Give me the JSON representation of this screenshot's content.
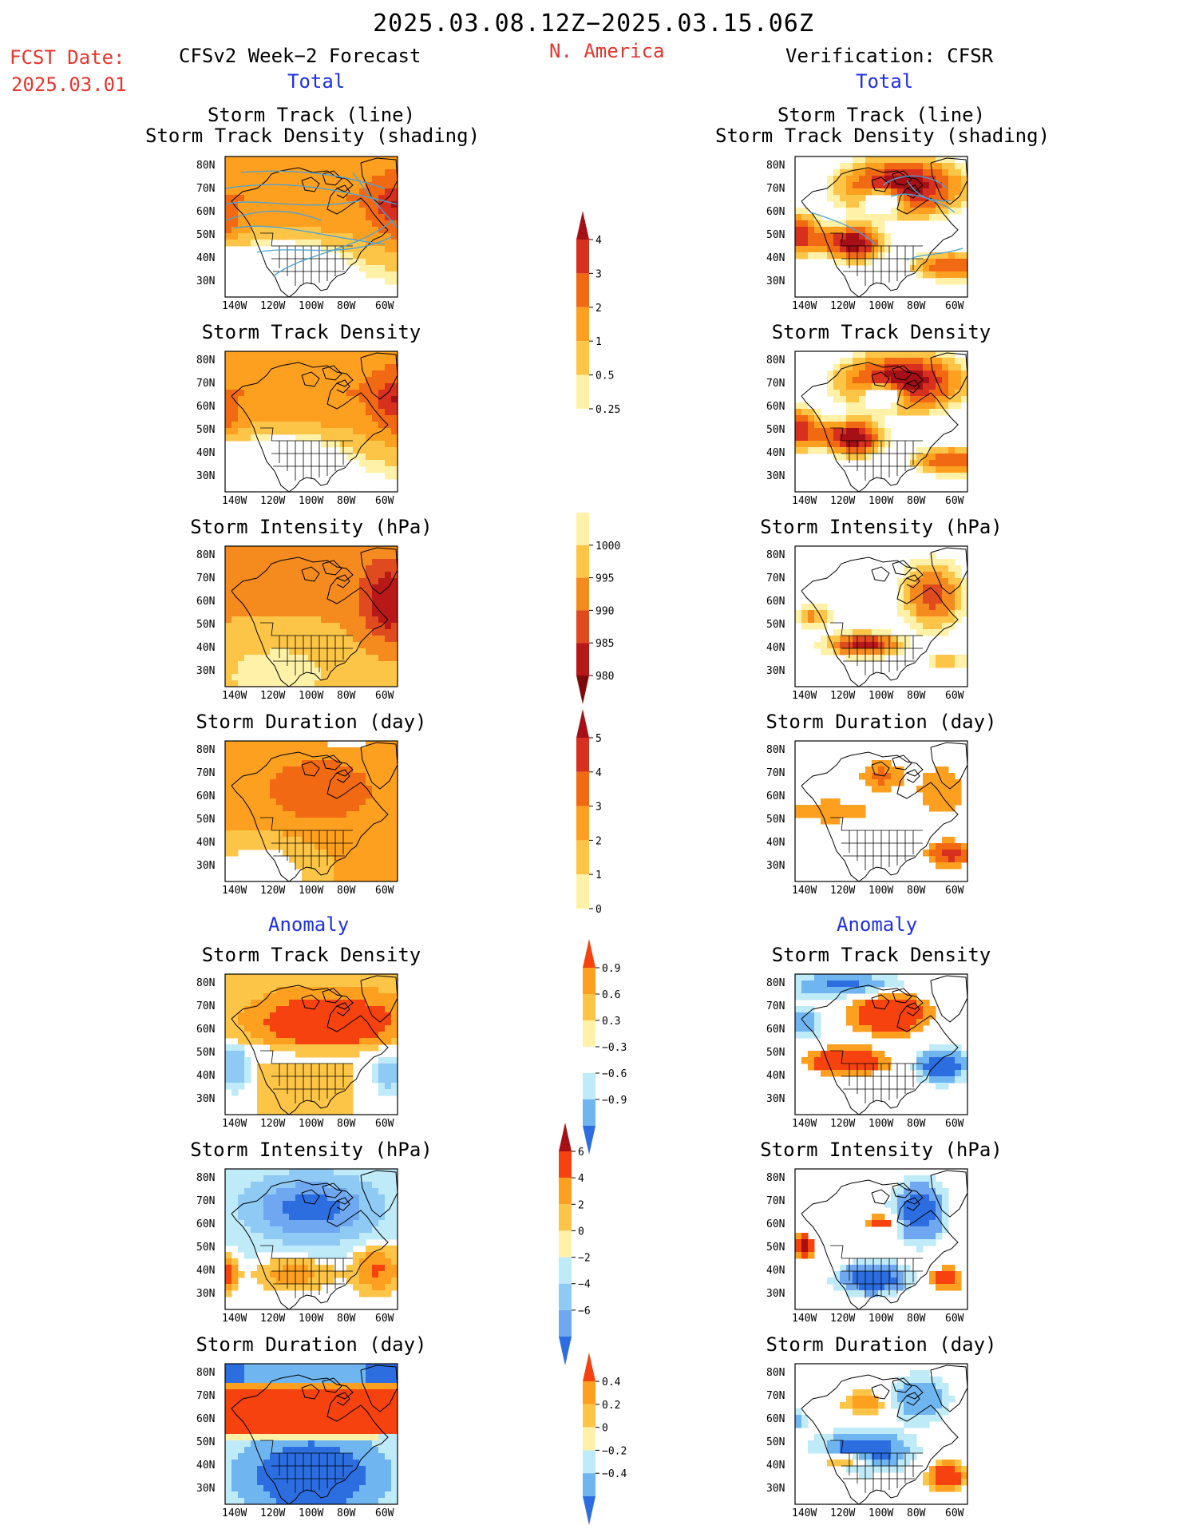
{
  "header": {
    "title": "2025.03.08.12Z−2025.03.15.06Z",
    "region": "N. America",
    "fcst_label": "FCST Date:",
    "fcst_date": "2025.03.01",
    "left_heading": "CFSv2 Week−2 Forecast",
    "right_heading": "Verification: CFSR",
    "left_total": "Total",
    "right_total": "Total",
    "left_anomaly": "Anomaly",
    "right_anomaly": "Anomaly"
  },
  "axes": {
    "lat_labels": [
      "80N",
      "70N",
      "60N",
      "50N",
      "40N",
      "30N"
    ],
    "lon_labels": [
      "140W",
      "120W",
      "100W",
      "80W",
      "60W"
    ]
  },
  "panels": [
    {
      "name": "fcst-track-line",
      "col": "left",
      "row": 0,
      "title_lines": [
        "Storm Track (line)",
        "Storm Track Density (shading)"
      ],
      "scheme": "density",
      "tracks": true
    },
    {
      "name": "verif-track-line",
      "col": "right",
      "row": 0,
      "title_lines": [
        "Storm Track (line)",
        "Storm Track Density (shading)"
      ],
      "scheme": "density_v",
      "tracks": true
    },
    {
      "name": "fcst-track-density",
      "col": "left",
      "row": 1,
      "title_lines": [
        "Storm Track Density"
      ],
      "scheme": "density"
    },
    {
      "name": "verif-track-density",
      "col": "right",
      "row": 1,
      "title_lines": [
        "Storm Track Density"
      ],
      "scheme": "density_v"
    },
    {
      "name": "fcst-storm-intensity",
      "col": "left",
      "row": 2,
      "title_lines": [
        "Storm Intensity (hPa)"
      ],
      "scheme": "intensity"
    },
    {
      "name": "verif-storm-intensity",
      "col": "right",
      "row": 2,
      "title_lines": [
        "Storm Intensity (hPa)"
      ],
      "scheme": "intensity_v"
    },
    {
      "name": "fcst-storm-duration",
      "col": "left",
      "row": 3,
      "title_lines": [
        "Storm Duration (day)"
      ],
      "scheme": "duration"
    },
    {
      "name": "verif-storm-duration",
      "col": "right",
      "row": 3,
      "title_lines": [
        "Storm Duration (day)"
      ],
      "scheme": "duration_v"
    },
    {
      "name": "fcst-density-anomaly",
      "col": "left",
      "row": 4,
      "title_lines": [
        "Storm Track Density"
      ],
      "scheme": "anom_density"
    },
    {
      "name": "verif-density-anomaly",
      "col": "right",
      "row": 4,
      "title_lines": [
        "Storm Track Density"
      ],
      "scheme": "anom_density_v"
    },
    {
      "name": "fcst-intensity-anomaly",
      "col": "left",
      "row": 5,
      "title_lines": [
        "Storm Intensity (hPa)"
      ],
      "scheme": "anom_intensity"
    },
    {
      "name": "verif-intensity-anomaly",
      "col": "right",
      "row": 5,
      "title_lines": [
        "Storm Intensity (hPa)"
      ],
      "scheme": "anom_intensity_v"
    },
    {
      "name": "fcst-duration-anomaly",
      "col": "left",
      "row": 6,
      "title_lines": [
        "Storm Duration (day)"
      ],
      "scheme": "anom_duration"
    },
    {
      "name": "verif-duration-anomaly",
      "col": "right",
      "row": 6,
      "title_lines": [
        "Storm Duration (day)"
      ],
      "scheme": "anom_duration_v"
    }
  ],
  "colorbars": [
    {
      "name": "density-colorbar",
      "labels": [
        "4",
        "3",
        "2",
        "1",
        "0.5",
        "0.25"
      ],
      "colors": [
        "#a50f15",
        "#d7301f",
        "#f16913",
        "#fd9f1f",
        "#fdc548",
        "#fff2a8"
      ],
      "arrow_top": true,
      "arrow_bottom": false
    },
    {
      "name": "intensity-colorbar",
      "labels": [
        "1000",
        "995",
        "990",
        "985",
        "980"
      ],
      "colors": [
        "#fff2a8",
        "#fdc548",
        "#f58a1f",
        "#e04a1f",
        "#b81818",
        "#800a0a"
      ],
      "arrow_top": false,
      "arrow_bottom": true
    },
    {
      "name": "duration-colorbar",
      "labels": [
        "5",
        "4",
        "3",
        "2",
        "1",
        "0"
      ],
      "colors": [
        "#a50f15",
        "#d7301f",
        "#f16913",
        "#fd9f1f",
        "#fdc548",
        "#fff2a8"
      ],
      "arrow_top": true,
      "arrow_bottom": false
    },
    {
      "name": "density-anomaly-colorbar",
      "labels": [
        "0.9",
        "0.6",
        "0.3",
        "−0.3",
        "−0.6",
        "−0.9"
      ],
      "colors": [
        "#f5420f",
        "#fd9f1f",
        "#fdc548",
        "#fff2a8",
        "#ffffff",
        "#bfeaf7",
        "#6fb6f0",
        "#2c6ee0"
      ],
      "arrow_top": true,
      "arrow_bottom": true
    },
    {
      "name": "intensity-anomaly-colorbar",
      "labels": [
        "6",
        "4",
        "2",
        "0",
        "−2",
        "−4",
        "−6"
      ],
      "colors": [
        "#a50f15",
        "#f5420f",
        "#fd9f1f",
        "#fdc548",
        "#fff2a8",
        "#bfeaf7",
        "#8fcaf5",
        "#6fa8f0",
        "#2c6ee0"
      ],
      "arrow_top": true,
      "arrow_bottom": true
    },
    {
      "name": "duration-anomaly-colorbar",
      "labels": [
        "0.4",
        "0.2",
        "0",
        "−0.2",
        "−0.4"
      ],
      "colors": [
        "#f5420f",
        "#fd9f1f",
        "#fdc548",
        "#fff2a8",
        "#bfeaf7",
        "#6fb6f0",
        "#2c6ee0"
      ],
      "arrow_top": true,
      "arrow_bottom": true
    }
  ]
}
